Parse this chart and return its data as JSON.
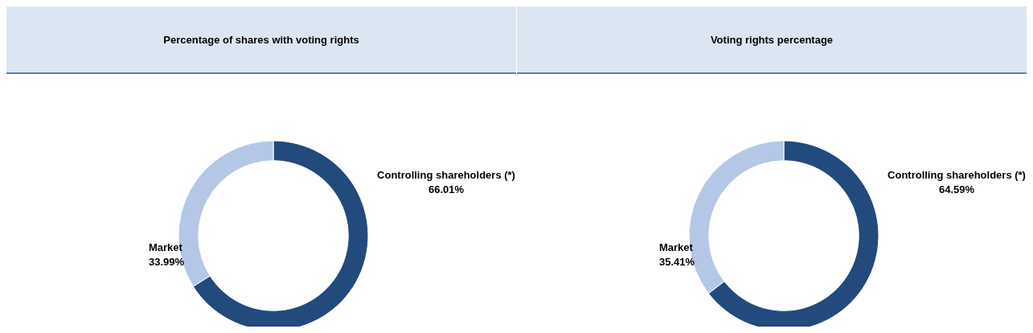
{
  "chart_data": [
    {
      "type": "donut",
      "title": "Percentage of shares with voting rights",
      "categories": [
        "Controlling shareholders (*)",
        "Market"
      ],
      "values": [
        66.01,
        33.99
      ],
      "colors": [
        "#234a7c",
        "#b4c7e7"
      ],
      "value_labels": [
        "66.01%",
        "33.99%"
      ]
    },
    {
      "type": "donut",
      "title": "Voting rights percentage",
      "categories": [
        "Controlling shareholders (*)",
        "Market"
      ],
      "values": [
        64.59,
        35.41
      ],
      "colors": [
        "#234a7c",
        "#b4c7e7"
      ],
      "value_labels": [
        "64.59%",
        "35.41%"
      ]
    }
  ]
}
